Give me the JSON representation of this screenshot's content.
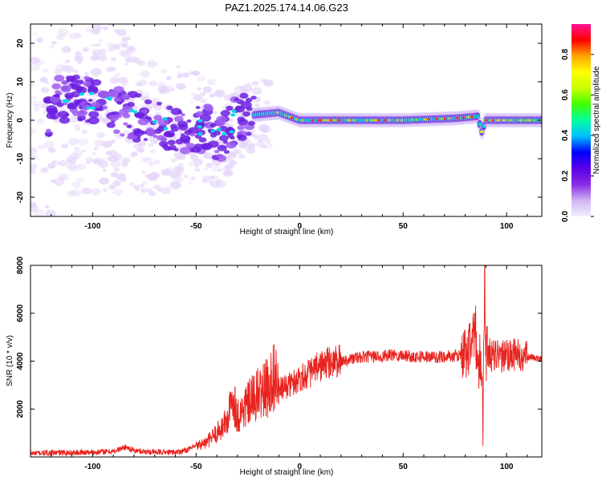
{
  "title": "PAZ1.2025.174.14.06.G23",
  "colors": {
    "snr_line": "#e8231e",
    "spectrogram_low": "#e6d6fa",
    "spectrogram_mid": "#6b1fe0",
    "spectrogram_ridge": "#00c8d2",
    "spectrogram_peak": "#ff2020"
  },
  "chart_data": [
    {
      "type": "heatmap",
      "xlabel": "Height of straight line (km)",
      "ylabel": "Frequency (Hz)",
      "xlim": [
        -130,
        117
      ],
      "ylim": [
        -25,
        25
      ],
      "x_ticks": [
        -100,
        -50,
        0,
        50,
        100
      ],
      "y_ticks": [
        -20,
        -10,
        0,
        10,
        20
      ],
      "colorbar": {
        "label": "Normalized spectral amplitude",
        "range": [
          0,
          0.95
        ],
        "ticks": [
          0.0,
          0.2,
          0.4,
          0.6,
          0.8
        ],
        "tick_labels": [
          "0.0",
          "0.2",
          "0.4",
          "0.6",
          "0.8"
        ],
        "colormap": [
          "#f2f0fc",
          "#cfb4f5",
          "#8a2be2",
          "#5a00e6",
          "#0000ff",
          "#00bfff",
          "#00ffa0",
          "#40ff00",
          "#c8ff00",
          "#ffff00",
          "#ffa500",
          "#ff0000",
          "#ff1493"
        ]
      },
      "ridge": {
        "description_points": [
          [
            -118,
            6
          ],
          [
            -100,
            5
          ],
          [
            -85,
            2
          ],
          [
            -70,
            -1
          ],
          [
            -55,
            -2
          ],
          [
            -45,
            -2
          ],
          [
            -38,
            -5
          ],
          [
            -30,
            1
          ],
          [
            -20,
            1.5
          ],
          [
            -10,
            2
          ],
          [
            0,
            0
          ],
          [
            25,
            0
          ],
          [
            50,
            0
          ],
          [
            75,
            0.5
          ],
          [
            86,
            1
          ],
          [
            88,
            -3
          ],
          [
            90,
            0
          ],
          [
            117,
            0
          ]
        ]
      }
    },
    {
      "type": "line",
      "xlabel": "Height of straight line (km)",
      "ylabel": "SNR (10 * v/v)",
      "xlim": [
        -130,
        117
      ],
      "ylim": [
        0,
        8000
      ],
      "x_ticks": [
        -100,
        -50,
        0,
        50,
        100
      ],
      "y_ticks": [
        2000,
        4000,
        6000,
        8000
      ],
      "series": [
        {
          "x": [
            -130,
            -120,
            -110,
            -100,
            -90,
            -84,
            -80,
            -70,
            -60,
            -55,
            -50,
            -45,
            -40,
            -35,
            -32,
            -30,
            -25,
            -20,
            -15,
            -12,
            -10,
            -5,
            0,
            5,
            10,
            15,
            20,
            25,
            30,
            35,
            40,
            45,
            50,
            55,
            60,
            65,
            70,
            75,
            80,
            83,
            85,
            86,
            87,
            88,
            88.5,
            89,
            89.5,
            90,
            91,
            92,
            95,
            100,
            105,
            108,
            110,
            115,
            117
          ],
          "y": [
            150,
            170,
            180,
            200,
            230,
            420,
            260,
            200,
            200,
            280,
            450,
            600,
            1000,
            1500,
            2500,
            1700,
            2200,
            2600,
            2900,
            3500,
            2800,
            3000,
            3300,
            3500,
            3800,
            3950,
            4000,
            4100,
            4150,
            4200,
            4200,
            4250,
            4250,
            4200,
            4200,
            4150,
            4200,
            4200,
            4300,
            4800,
            5200,
            3800,
            4000,
            4200,
            700,
            5500,
            7900,
            4200,
            4800,
            4200,
            4200,
            4200,
            4300,
            4000,
            4200,
            4100,
            4100
          ]
        }
      ]
    }
  ]
}
